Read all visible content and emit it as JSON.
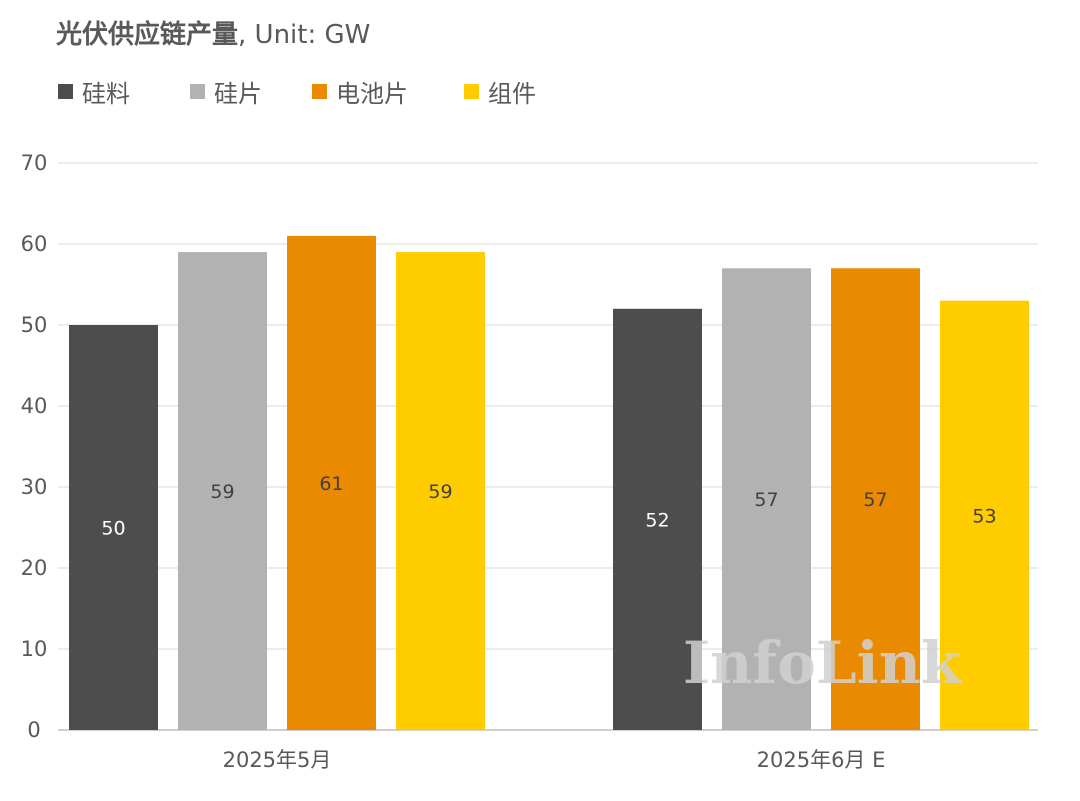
{
  "title": {
    "bold_part": "光伏供应链产量",
    "rest": ", Unit: GW"
  },
  "watermark": "InfoLink",
  "chart_data": {
    "type": "bar",
    "categories": [
      "2025年5月",
      "2025年6月 E"
    ],
    "series": [
      {
        "name": "硅料",
        "color": "#4d4d4d",
        "label_color": "#ffffff",
        "values": [
          50,
          52
        ]
      },
      {
        "name": "硅片",
        "color": "#b2b2b2",
        "label_color": "#404040",
        "values": [
          59,
          57
        ]
      },
      {
        "name": "电池片",
        "color": "#ea8a00",
        "label_color": "#404040",
        "values": [
          61,
          57
        ]
      },
      {
        "name": "组件",
        "color": "#ffcc00",
        "label_color": "#404040",
        "values": [
          59,
          53
        ]
      }
    ],
    "title": "光伏供应链产量, Unit: GW",
    "xlabel": "",
    "ylabel": "",
    "ylim": [
      0,
      70
    ],
    "yticks": [
      0,
      10,
      20,
      30,
      40,
      50,
      60,
      70
    ],
    "grid": true,
    "legend": "top-left",
    "data_labels": "center"
  }
}
